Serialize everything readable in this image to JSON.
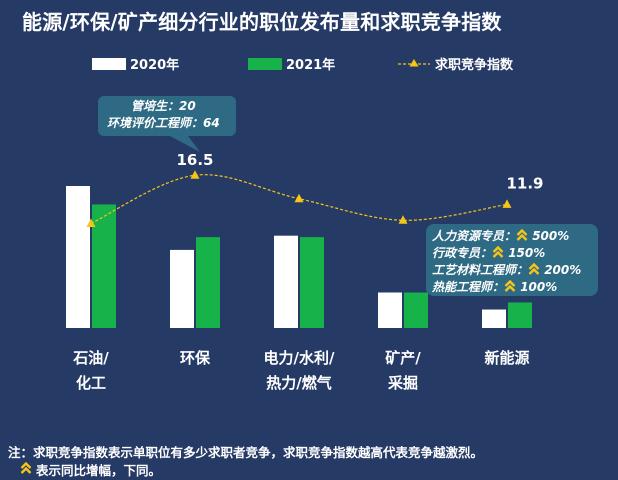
{
  "title": "能源/环保/矿产细分行业的职位发布量和求职竞争指数",
  "legend": {
    "series_2020": "2020年",
    "series_2021": "2021年",
    "competition": "求职竞争指数"
  },
  "colors": {
    "background": "#263a66",
    "bar_2020": "#ffffff",
    "bar_2021": "#17b34a",
    "line": "#f5c518",
    "callout_bg": "#2f6a84",
    "increase_icon": "#f5c518"
  },
  "chart_data": {
    "type": "bar",
    "categories": [
      [
        "石油/",
        "化工"
      ],
      [
        "环保"
      ],
      [
        "电力/水利/",
        "热力/燃气"
      ],
      [
        "矿产/",
        "采掘"
      ],
      [
        "新能源"
      ]
    ],
    "series": [
      {
        "name": "2020年",
        "values": [
          100,
          55,
          65,
          25,
          13
        ]
      },
      {
        "name": "2021年",
        "values": [
          87,
          64,
          64,
          25,
          18
        ]
      }
    ],
    "competition_index": {
      "name": "求职竞争指数",
      "values": [
        8.9,
        16.5,
        12.8,
        9.4,
        11.9
      ],
      "data_labels": [
        "",
        "16.5",
        "",
        "",
        "11.9"
      ]
    },
    "ylim": [
      0,
      110
    ],
    "grid": false,
    "legend_position": "top"
  },
  "callouts": {
    "environment": [
      "管培生：20",
      "环境评价工程师：64"
    ],
    "new_energy": [
      {
        "role": "人力资源专员：",
        "value": "500%"
      },
      {
        "role": "行政专员：",
        "value": "150%"
      },
      {
        "role": "工艺材料工程师：",
        "value": "200%"
      },
      {
        "role": "热能工程师：",
        "value": "100%"
      }
    ]
  },
  "footnote": {
    "line1": "注：求职竞争指数表示单职位有多少求职者竞争，求职竞争指数越高代表竞争越激烈。",
    "line2": "表示同比增幅，下同。"
  }
}
